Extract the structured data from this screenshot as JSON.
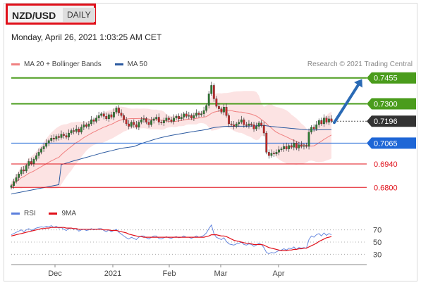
{
  "header": {
    "pair": "NZD/USD",
    "timeframe": "DAILY",
    "timestamp": "Monday, April 26, 2021 1:03:25 AM CET"
  },
  "legend": {
    "items": [
      {
        "label": "MA 20 + Bollinger Bands",
        "color": "#f08080"
      },
      {
        "label": "MA 50",
        "color": "#2c5aa0"
      }
    ],
    "credit": "Research © 2021 Trading Central"
  },
  "rsi_legend": {
    "items": [
      {
        "label": "RSI",
        "color": "#5b7fdc"
      },
      {
        "label": "9MA",
        "color": "#e0101a"
      }
    ]
  },
  "chart_data": [
    {
      "type": "candlestick",
      "ylim": [
        0.67,
        0.75
      ],
      "x_ticks": [
        "Dec",
        "2021",
        "Feb",
        "Mar",
        "Apr"
      ],
      "levels": [
        {
          "value": 0.7455,
          "label": "0.7455",
          "color": "#4a9c1c",
          "style": "filled"
        },
        {
          "value": 0.73,
          "label": "0.7300",
          "color": "#4a9c1c",
          "style": "filled"
        },
        {
          "value": 0.7196,
          "label": "0.7196",
          "color": "#333333",
          "style": "filled"
        },
        {
          "value": 0.7065,
          "label": "0.7065",
          "color": "#1e66d6",
          "style": "filled"
        },
        {
          "value": 0.694,
          "label": "0.6940",
          "color": "#e0101a",
          "style": "text"
        },
        {
          "value": 0.68,
          "label": "0.6800",
          "color": "#e0101a",
          "style": "text"
        }
      ],
      "close": [
        0.681,
        0.6835,
        0.6858,
        0.688,
        0.6905,
        0.6898,
        0.693,
        0.6955,
        0.6942,
        0.6968,
        0.699,
        0.701,
        0.703,
        0.7045,
        0.7065,
        0.708,
        0.7095,
        0.7088,
        0.7105,
        0.7098,
        0.7118,
        0.711,
        0.71,
        0.7125,
        0.714,
        0.7135,
        0.715,
        0.713,
        0.716,
        0.7175,
        0.7165,
        0.718,
        0.7205,
        0.7195,
        0.7215,
        0.723,
        0.724,
        0.7225,
        0.721,
        0.7235,
        0.722,
        0.725,
        0.7275,
        0.7245,
        0.723,
        0.7205,
        0.718,
        0.7165,
        0.719,
        0.7175,
        0.716,
        0.719,
        0.7205,
        0.721,
        0.719,
        0.7175,
        0.72,
        0.721,
        0.722,
        0.719,
        0.7185,
        0.72,
        0.7215,
        0.7205,
        0.7195,
        0.7215,
        0.7225,
        0.721,
        0.722,
        0.724,
        0.7225,
        0.723,
        0.7215,
        0.723,
        0.7245,
        0.7235,
        0.724,
        0.726,
        0.729,
        0.736,
        0.741,
        0.733,
        0.7285,
        0.727,
        0.725,
        0.728,
        0.723,
        0.718,
        0.7175,
        0.7165,
        0.718,
        0.719,
        0.7205,
        0.7175,
        0.717,
        0.718,
        0.7175,
        0.715,
        0.7165,
        0.7185,
        0.717,
        0.7125,
        0.701,
        0.699,
        0.7005,
        0.7,
        0.701,
        0.7025,
        0.703,
        0.7045,
        0.703,
        0.705,
        0.704,
        0.7065,
        0.7035,
        0.7055,
        0.7045,
        0.705,
        0.7045,
        0.713,
        0.716,
        0.715,
        0.7175,
        0.72,
        0.718,
        0.7215,
        0.719,
        0.721,
        0.7196
      ],
      "ma50_start": 0.676,
      "ma50_end": 0.714
    },
    {
      "type": "line",
      "ylim": [
        20,
        80
      ],
      "y_ticks": [
        70,
        50,
        30
      ],
      "series": [
        {
          "name": "RSI",
          "color": "#5b7fdc",
          "values": [
            62,
            64,
            66,
            68,
            70,
            67,
            70,
            72,
            69,
            71,
            73,
            74,
            75,
            74,
            76,
            75,
            77,
            74,
            76,
            73,
            74,
            71,
            69,
            72,
            73,
            71,
            72,
            68,
            70,
            71,
            69,
            70,
            72,
            70,
            71,
            72,
            72,
            69,
            67,
            70,
            67,
            69,
            71,
            66,
            63,
            60,
            57,
            55,
            58,
            56,
            54,
            58,
            60,
            60,
            57,
            55,
            58,
            60,
            60,
            56,
            55,
            57,
            59,
            57,
            56,
            58,
            59,
            57,
            58,
            60,
            58,
            58,
            56,
            58,
            60,
            58,
            59,
            61,
            65,
            72,
            78,
            64,
            58,
            56,
            54,
            57,
            51,
            47,
            46,
            45,
            47,
            48,
            50,
            46,
            45,
            47,
            46,
            43,
            45,
            48,
            46,
            41,
            33,
            31,
            33,
            32,
            34,
            36,
            37,
            39,
            37,
            40,
            39,
            42,
            38,
            41,
            40,
            41,
            40,
            54,
            60,
            58,
            62,
            64,
            60,
            65,
            61,
            64,
            62
          ]
        },
        {
          "name": "9MA",
          "color": "#e0101a",
          "values": [
            60,
            61,
            62,
            63,
            64,
            65,
            66,
            67,
            68,
            69,
            70,
            71,
            72,
            72,
            73,
            73,
            74,
            74,
            74,
            74,
            74,
            74,
            73,
            73,
            73,
            72,
            72,
            71,
            71,
            71,
            71,
            71,
            71,
            71,
            71,
            71,
            71,
            70,
            70,
            70,
            69,
            69,
            69,
            68,
            67,
            66,
            65,
            63,
            62,
            61,
            60,
            59,
            59,
            58,
            58,
            58,
            58,
            58,
            58,
            58,
            58,
            58,
            58,
            58,
            58,
            58,
            58,
            58,
            58,
            58,
            58,
            58,
            58,
            58,
            58,
            58,
            58,
            58,
            59,
            60,
            62,
            62,
            62,
            61,
            60,
            60,
            59,
            57,
            55,
            53,
            52,
            51,
            50,
            49,
            48,
            48,
            47,
            46,
            46,
            46,
            46,
            45,
            43,
            41,
            40,
            39,
            38,
            37,
            36,
            36,
            36,
            37,
            37,
            38,
            38,
            39,
            39,
            40,
            40,
            42,
            44,
            46,
            48,
            51,
            53,
            55,
            57,
            58,
            59
          ]
        }
      ]
    }
  ]
}
